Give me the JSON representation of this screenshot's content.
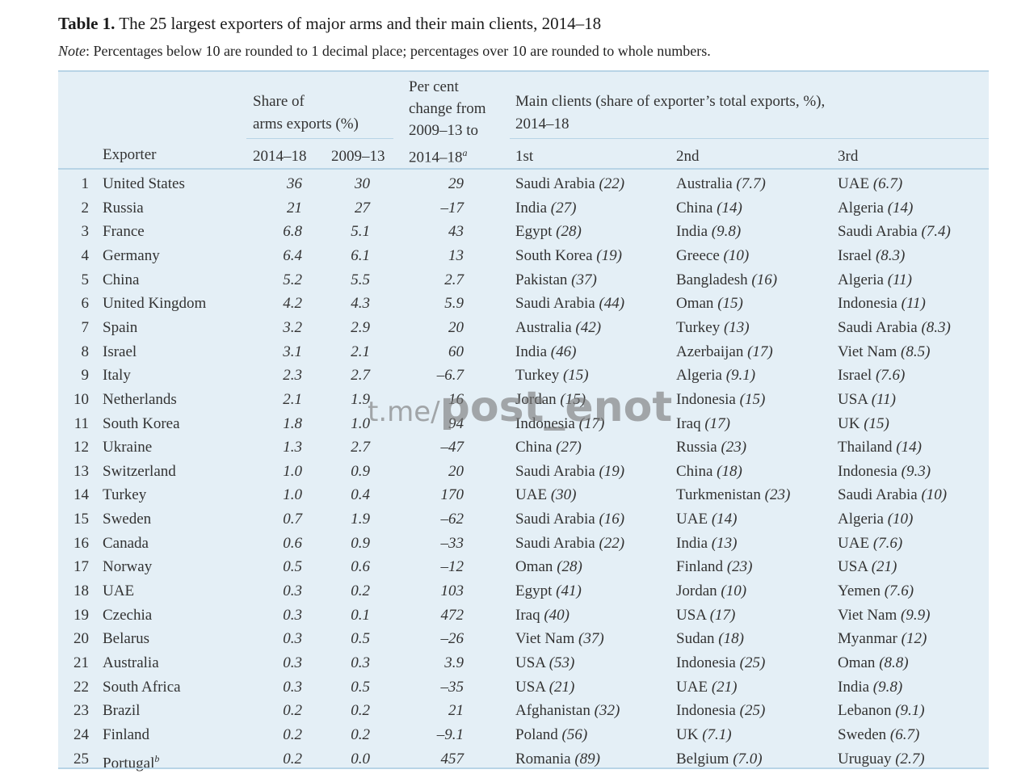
{
  "title": {
    "label": "Table 1.",
    "text": "The 25 largest exporters of major arms and their main clients, 2014–18"
  },
  "note": {
    "label": "Note",
    "text": ": Percentages below 10 are rounded to 1 decimal place; percentages over 10 are rounded to whole numbers."
  },
  "headers": {
    "exporter": "Exporter",
    "share_line1": "Share of",
    "share_line2": "arms exports (%)",
    "share_2014": "2014–18",
    "share_2009": "2009–13",
    "change_line1": "Per cent",
    "change_line2": "change from",
    "change_line3": "2009–13 to",
    "change_line4": "2014–18",
    "change_sup": "a",
    "clients_line1": "Main clients (share of exporter’s total exports, %),",
    "clients_line2": "2014–18",
    "first": "1st",
    "second": "2nd",
    "third": "3rd"
  },
  "rows": [
    {
      "n": "1",
      "exporter": "United States",
      "s1": "36",
      "s2": "30",
      "pc": "29",
      "c1": "Saudi Arabia",
      "p1": "(22)",
      "c2": "Australia",
      "p2": "(7.7)",
      "c3": "UAE",
      "p3": "(6.7)"
    },
    {
      "n": "2",
      "exporter": "Russia",
      "s1": "21",
      "s2": "27",
      "pc": "–17",
      "c1": "India",
      "p1": "(27)",
      "c2": "China",
      "p2": "(14)",
      "c3": "Algeria",
      "p3": "(14)"
    },
    {
      "n": "3",
      "exporter": "France",
      "s1": "6.8",
      "s2": "5.1",
      "pc": "43",
      "c1": "Egypt",
      "p1": "(28)",
      "c2": "India",
      "p2": "(9.8)",
      "c3": "Saudi Arabia",
      "p3": "(7.4)"
    },
    {
      "n": "4",
      "exporter": "Germany",
      "s1": "6.4",
      "s2": "6.1",
      "pc": "13",
      "c1": "South Korea",
      "p1": "(19)",
      "c2": "Greece",
      "p2": "(10)",
      "c3": "Israel",
      "p3": "(8.3)"
    },
    {
      "n": "5",
      "exporter": "China",
      "s1": "5.2",
      "s2": "5.5",
      "pc": "2.7",
      "c1": "Pakistan",
      "p1": "(37)",
      "c2": "Bangladesh",
      "p2": "(16)",
      "c3": "Algeria",
      "p3": "(11)"
    },
    {
      "n": "6",
      "exporter": "United Kingdom",
      "s1": "4.2",
      "s2": "4.3",
      "pc": "5.9",
      "c1": "Saudi Arabia",
      "p1": "(44)",
      "c2": "Oman",
      "p2": "(15)",
      "c3": "Indonesia",
      "p3": "(11)"
    },
    {
      "n": "7",
      "exporter": "Spain",
      "s1": "3.2",
      "s2": "2.9",
      "pc": "20",
      "c1": "Australia",
      "p1": "(42)",
      "c2": "Turkey",
      "p2": "(13)",
      "c3": "Saudi Arabia",
      "p3": "(8.3)"
    },
    {
      "n": "8",
      "exporter": "Israel",
      "s1": "3.1",
      "s2": "2.1",
      "pc": "60",
      "c1": "India",
      "p1": "(46)",
      "c2": "Azerbaijan",
      "p2": "(17)",
      "c3": "Viet Nam",
      "p3": "(8.5)"
    },
    {
      "n": "9",
      "exporter": "Italy",
      "s1": "2.3",
      "s2": "2.7",
      "pc": "–6.7",
      "c1": "Turkey",
      "p1": "(15)",
      "c2": "Algeria",
      "p2": "(9.1)",
      "c3": "Israel",
      "p3": "(7.6)"
    },
    {
      "n": "10",
      "exporter": "Netherlands",
      "s1": "2.1",
      "s2": "1.9",
      "pc": "16",
      "c1": "Jordan",
      "p1": "(15)",
      "c2": "Indonesia",
      "p2": "(15)",
      "c3": "USA",
      "p3": "(11)"
    },
    {
      "n": "11",
      "exporter": "South Korea",
      "s1": "1.8",
      "s2": "1.0",
      "pc": "94",
      "c1": "Indonesia",
      "p1": "(17)",
      "c2": "Iraq",
      "p2": "(17)",
      "c3": "UK",
      "p3": "(15)"
    },
    {
      "n": "12",
      "exporter": "Ukraine",
      "s1": "1.3",
      "s2": "2.7",
      "pc": "–47",
      "c1": "China",
      "p1": "(27)",
      "c2": "Russia",
      "p2": "(23)",
      "c3": "Thailand",
      "p3": "(14)"
    },
    {
      "n": "13",
      "exporter": "Switzerland",
      "s1": "1.0",
      "s2": "0.9",
      "pc": "20",
      "c1": "Saudi Arabia",
      "p1": "(19)",
      "c2": "China",
      "p2": "(18)",
      "c3": "Indonesia",
      "p3": "(9.3)"
    },
    {
      "n": "14",
      "exporter": "Turkey",
      "s1": "1.0",
      "s2": "0.4",
      "pc": "170",
      "c1": "UAE",
      "p1": "(30)",
      "c2": "Turkmenistan",
      "p2": "(23)",
      "c3": "Saudi Arabia",
      "p3": "(10)"
    },
    {
      "n": "15",
      "exporter": "Sweden",
      "s1": "0.7",
      "s2": "1.9",
      "pc": "–62",
      "c1": "Saudi Arabia",
      "p1": "(16)",
      "c2": "UAE",
      "p2": "(14)",
      "c3": "Algeria",
      "p3": "(10)"
    },
    {
      "n": "16",
      "exporter": "Canada",
      "s1": "0.6",
      "s2": "0.9",
      "pc": "–33",
      "c1": "Saudi Arabia",
      "p1": "(22)",
      "c2": "India",
      "p2": "(13)",
      "c3": "UAE",
      "p3": "(7.6)"
    },
    {
      "n": "17",
      "exporter": "Norway",
      "s1": "0.5",
      "s2": "0.6",
      "pc": "–12",
      "c1": "Oman",
      "p1": "(28)",
      "c2": "Finland",
      "p2": "(23)",
      "c3": "USA",
      "p3": "(21)"
    },
    {
      "n": "18",
      "exporter": "UAE",
      "s1": "0.3",
      "s2": "0.2",
      "pc": "103",
      "c1": "Egypt",
      "p1": "(41)",
      "c2": "Jordan",
      "p2": "(10)",
      "c3": "Yemen",
      "p3": "(7.6)"
    },
    {
      "n": "19",
      "exporter": "Czechia",
      "s1": "0.3",
      "s2": "0.1",
      "pc": "472",
      "c1": "Iraq",
      "p1": "(40)",
      "c2": "USA",
      "p2": "(17)",
      "c3": "Viet Nam",
      "p3": "(9.9)"
    },
    {
      "n": "20",
      "exporter": "Belarus",
      "s1": "0.3",
      "s2": "0.5",
      "pc": "–26",
      "c1": "Viet Nam",
      "p1": "(37)",
      "c2": "Sudan",
      "p2": "(18)",
      "c3": "Myanmar",
      "p3": "(12)"
    },
    {
      "n": "21",
      "exporter": "Australia",
      "s1": "0.3",
      "s2": "0.3",
      "pc": "3.9",
      "c1": "USA",
      "p1": "(53)",
      "c2": "Indonesia",
      "p2": "(25)",
      "c3": "Oman",
      "p3": "(8.8)"
    },
    {
      "n": "22",
      "exporter": "South Africa",
      "s1": "0.3",
      "s2": "0.5",
      "pc": "–35",
      "c1": "USA",
      "p1": "(21)",
      "c2": "UAE",
      "p2": "(21)",
      "c3": "India",
      "p3": "(9.8)"
    },
    {
      "n": "23",
      "exporter": "Brazil",
      "s1": "0.2",
      "s2": "0.2",
      "pc": "21",
      "c1": "Afghanistan",
      "p1": "(32)",
      "c2": "Indonesia",
      "p2": "(25)",
      "c3": "Lebanon",
      "p3": "(9.1)"
    },
    {
      "n": "24",
      "exporter": "Finland",
      "s1": "0.2",
      "s2": "0.2",
      "pc": "–9.1",
      "c1": "Poland",
      "p1": "(56)",
      "c2": "UK",
      "p2": "(7.1)",
      "c3": "Sweden",
      "p3": "(6.7)"
    },
    {
      "n": "25",
      "exporter": "Portugal",
      "sup": "b",
      "s1": "0.2",
      "s2": "0.0",
      "pc": "457",
      "c1": "Romania",
      "p1": "(89)",
      "c2": "Belgium",
      "p2": "(7.0)",
      "c3": "Uruguay",
      "p3": "(2.7)"
    }
  ],
  "watermark": {
    "prefix": "t.me/",
    "handle": "post_enot"
  }
}
